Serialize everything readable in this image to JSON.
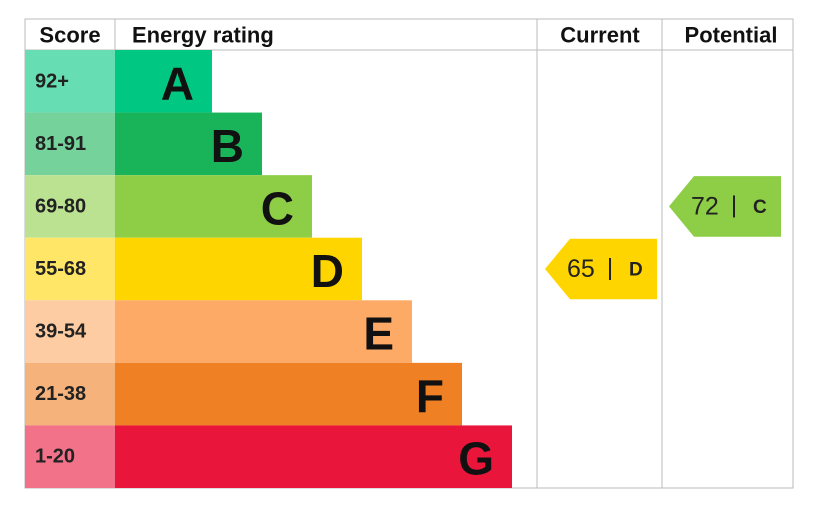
{
  "header": [
    "Score",
    "Energy rating",
    "Current",
    "Potential"
  ],
  "bands": [
    {
      "score": "92+",
      "letter": "A",
      "color": "#00c781"
    },
    {
      "score": "81-91",
      "letter": "B",
      "color": "#19b459"
    },
    {
      "score": "69-80",
      "letter": "C",
      "color": "#8dce46"
    },
    {
      "score": "55-68",
      "letter": "D",
      "color": "#ffd500"
    },
    {
      "score": "39-54",
      "letter": "E",
      "color": "#fcaa65"
    },
    {
      "score": "21-38",
      "letter": "F",
      "color": "#ef8023"
    },
    {
      "score": "1-20",
      "letter": "G",
      "color": "#e9153b"
    }
  ],
  "current": {
    "value": 65,
    "letter": "D"
  },
  "potential": {
    "value": 72,
    "letter": "C"
  }
}
